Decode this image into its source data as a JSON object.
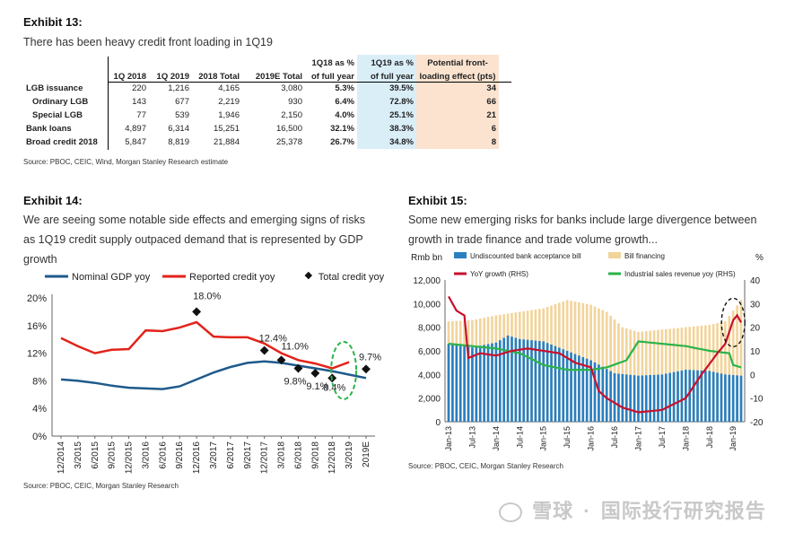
{
  "exhibit13": {
    "title": "Exhibit 13:",
    "subtitle": "There has been heavy credit front loading in 1Q19",
    "table": {
      "headers": [
        [
          "",
          ""
        ],
        [
          "",
          "1Q 2018"
        ],
        [
          "",
          "1Q 2019"
        ],
        [
          "",
          "2018 Total"
        ],
        [
          "",
          "2019E Total"
        ],
        [
          "1Q18 as %",
          "of full year"
        ],
        [
          "1Q19 as %",
          "of full year"
        ],
        [
          "Potential front-",
          "loading effect (pts)"
        ]
      ],
      "rows": [
        {
          "label": "LGB issuance",
          "indent": false,
          "cells": [
            "220",
            "1,216",
            "4,165",
            "3,080",
            "5.3%",
            "39.5%",
            "34"
          ]
        },
        {
          "label": "Ordinary LGB",
          "indent": true,
          "cells": [
            "143",
            "677",
            "2,219",
            "930",
            "6.4%",
            "72.8%",
            "66"
          ]
        },
        {
          "label": "Special LGB",
          "indent": true,
          "cells": [
            "77",
            "539",
            "1,946",
            "2,150",
            "4.0%",
            "25.1%",
            "21"
          ]
        },
        {
          "label": "Bank loans",
          "indent": false,
          "cells": [
            "4,897",
            "6,314",
            "15,251",
            "16,500",
            "32.1%",
            "38.3%",
            "6"
          ]
        },
        {
          "label": "Broad credit 2018",
          "indent": false,
          "cells": [
            "5,847",
            "8,819",
            "21,884",
            "25,378",
            "26.7%",
            "34.8%",
            "8"
          ]
        }
      ]
    },
    "source": "Source: PBOC, CEIC, Wind, Morgan Stanley Research estimate"
  },
  "exhibit14": {
    "title": "Exhibit 14:",
    "subtitle_lines": [
      "We are seeing some notable side effects and emerging signs of risks",
      "as 1Q19 credit supply outpaced demand that is represented by GDP",
      "growth"
    ],
    "source": "Source: PBOC, CEIC, Morgan Stanley Research"
  },
  "exhibit15": {
    "title": "Exhibit 15:",
    "subtitle_lines": [
      "Some new emerging risks for banks include large divergence between",
      "growth in trade finance and trade volume growth..."
    ],
    "source": "Source: PBOC, CEIC, Morgan Stanley Research"
  },
  "watermark": {
    "left": "雪球",
    "right": "国际投行研究报告"
  },
  "chart_data": [
    {
      "type": "line",
      "id": "exhibit14",
      "categories": [
        "12/2014",
        "3/2015",
        "6/2015",
        "9/2015",
        "12/2015",
        "3/2016",
        "6/2016",
        "9/2016",
        "12/2016",
        "3/2017",
        "6/2017",
        "9/2017",
        "12/2017",
        "3/2018",
        "6/2018",
        "9/2018",
        "12/2018",
        "3/2019",
        "2019E"
      ],
      "series": [
        {
          "name": "Nominal GDP yoy",
          "kind": "line",
          "color": "#1f5a8c",
          "values": [
            8.2,
            8.0,
            7.7,
            7.3,
            7.0,
            6.9,
            6.8,
            7.2,
            8.2,
            9.2,
            10.0,
            10.6,
            10.8,
            10.6,
            10.2,
            9.8,
            9.4,
            8.9,
            8.4
          ]
        },
        {
          "name": "Reported credit yoy",
          "kind": "line",
          "color": "#e2231a",
          "values": [
            14.2,
            13.0,
            12.0,
            12.5,
            12.6,
            15.3,
            15.2,
            15.7,
            16.5,
            14.4,
            14.3,
            14.3,
            13.4,
            12.0,
            11.0,
            10.5,
            9.8,
            10.7,
            null
          ]
        },
        {
          "name": "Total credit yoy",
          "kind": "marker",
          "color": "#111111",
          "values": [
            null,
            null,
            null,
            null,
            null,
            null,
            null,
            null,
            18.0,
            null,
            null,
            null,
            12.4,
            11.0,
            9.8,
            9.1,
            8.4,
            null,
            9.7
          ]
        }
      ],
      "point_labels": [
        {
          "category": "12/2016",
          "text": "18.0%"
        },
        {
          "category": "12/2017",
          "text": "12.4%"
        },
        {
          "category": "3/2018",
          "text": "11.0%"
        },
        {
          "category": "6/2018",
          "text": "9.8%"
        },
        {
          "category": "9/2018",
          "text": "9.1%"
        },
        {
          "category": "12/2018",
          "text": "8.4%"
        },
        {
          "category": "2019E",
          "text": "9.7%"
        }
      ],
      "yticks": [
        "0%",
        "4%",
        "8%",
        "12%",
        "16%",
        "20%"
      ],
      "ylim": [
        0,
        20
      ],
      "legend_position": "top",
      "grid": false,
      "annotation": "green dashed ellipse around 12/2018–3/2019"
    },
    {
      "type": "bar",
      "id": "exhibit15",
      "x_tick_labels": [
        "Jan-13",
        "Jul-13",
        "Jan-14",
        "Jul-14",
        "Jan-15",
        "Jul-15",
        "Jan-16",
        "Jul-16",
        "Jan-17",
        "Jul-17",
        "Jan-18",
        "Jul-18",
        "Jan-19"
      ],
      "left_axis_label": "Rmb bn",
      "right_axis_label": "%",
      "left_yticks": [
        "0",
        "2,000",
        "4,000",
        "6,000",
        "8,000",
        "10,000",
        "12,000"
      ],
      "right_yticks": [
        "-20",
        "-10",
        "0",
        "10",
        "20",
        "30",
        "40"
      ],
      "ylim_left": [
        0,
        12000
      ],
      "ylim_right": [
        -20,
        40
      ],
      "months": 75,
      "series": [
        {
          "name": "Undiscounted bank acceptance bill",
          "kind": "bar",
          "axis": "left",
          "color": "#2a7fbf",
          "keypoints": [
            [
              0,
              6600
            ],
            [
              6,
              6300
            ],
            [
              12,
              6700
            ],
            [
              15,
              7300
            ],
            [
              18,
              7000
            ],
            [
              24,
              6800
            ],
            [
              30,
              6000
            ],
            [
              36,
              5200
            ],
            [
              42,
              4100
            ],
            [
              48,
              3900
            ],
            [
              54,
              4000
            ],
            [
              60,
              4400
            ],
            [
              66,
              4300
            ],
            [
              70,
              4000
            ],
            [
              74,
              3900
            ]
          ]
        },
        {
          "name": "Bill financing",
          "kind": "bar",
          "axis": "left",
          "color": "#f2d49b",
          "keypoints": [
            [
              0,
              8500
            ],
            [
              6,
              8600
            ],
            [
              12,
              9000
            ],
            [
              18,
              9300
            ],
            [
              24,
              9600
            ],
            [
              30,
              10300
            ],
            [
              36,
              9900
            ],
            [
              40,
              9300
            ],
            [
              44,
              8000
            ],
            [
              48,
              7600
            ],
            [
              54,
              7800
            ],
            [
              60,
              8000
            ],
            [
              66,
              8200
            ],
            [
              70,
              8500
            ],
            [
              74,
              10300
            ]
          ]
        },
        {
          "name": "YoY growth (RHS)",
          "kind": "line",
          "axis": "right",
          "color": "#c8102e",
          "keypoints": [
            [
              0,
              33
            ],
            [
              2,
              27
            ],
            [
              4,
              25
            ],
            [
              5,
              7
            ],
            [
              8,
              9
            ],
            [
              12,
              8
            ],
            [
              16,
              10
            ],
            [
              20,
              11
            ],
            [
              24,
              10
            ],
            [
              28,
              9
            ],
            [
              32,
              5
            ],
            [
              36,
              3
            ],
            [
              38,
              -7
            ],
            [
              40,
              -10
            ],
            [
              44,
              -14
            ],
            [
              48,
              -16
            ],
            [
              54,
              -15
            ],
            [
              60,
              -10
            ],
            [
              64,
              0
            ],
            [
              68,
              9
            ],
            [
              70,
              13
            ],
            [
              72,
              23
            ],
            [
              73,
              25
            ],
            [
              74,
              22
            ]
          ]
        },
        {
          "name": "Industrial sales revenue yoy (RHS)",
          "kind": "line",
          "axis": "right",
          "color": "#2bb34a",
          "keypoints": [
            [
              0,
              13
            ],
            [
              6,
              12
            ],
            [
              12,
              11
            ],
            [
              18,
              9
            ],
            [
              24,
              4
            ],
            [
              30,
              2
            ],
            [
              36,
              2
            ],
            [
              40,
              3
            ],
            [
              45,
              6
            ],
            [
              48,
              14
            ],
            [
              54,
              13
            ],
            [
              60,
              12
            ],
            [
              66,
              10
            ],
            [
              71,
              9
            ],
            [
              72,
              4
            ],
            [
              74,
              3
            ]
          ]
        }
      ],
      "legend_position": "top",
      "annotation": "black dashed ellipse around Jan-19 spike"
    }
  ]
}
